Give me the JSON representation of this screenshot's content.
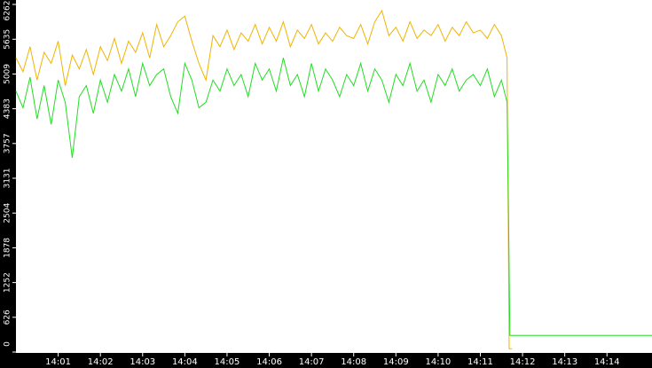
{
  "chart_data": {
    "type": "line",
    "xlim": [
      "14:00:00",
      "14:15:04"
    ],
    "xticks": [
      "14:01",
      "14:02",
      "14:03",
      "14:04",
      "14:05",
      "14:06",
      "14:07",
      "14:08",
      "14:09",
      "14:10",
      "14:11",
      "14:12",
      "14:13",
      "14:14"
    ],
    "ylim": [
      0,
      6262
    ],
    "yticks": [
      0,
      626,
      1252,
      1878,
      2504,
      3131,
      3757,
      4383,
      5009,
      5635,
      6262
    ],
    "series": [
      {
        "color": "#f0b400",
        "x": [
          "14:00:00",
          "14:00:10",
          "14:00:20",
          "14:00:30",
          "14:00:40",
          "14:00:50",
          "14:01:00",
          "14:01:10",
          "14:01:20",
          "14:01:30",
          "14:01:40",
          "14:01:50",
          "14:02:00",
          "14:02:10",
          "14:02:20",
          "14:02:30",
          "14:02:40",
          "14:02:50",
          "14:03:00",
          "14:03:10",
          "14:03:20",
          "14:03:30",
          "14:03:40",
          "14:03:50",
          "14:04:00",
          "14:04:10",
          "14:04:20",
          "14:04:30",
          "14:04:40",
          "14:04:50",
          "14:05:00",
          "14:05:10",
          "14:05:20",
          "14:05:30",
          "14:05:40",
          "14:05:50",
          "14:06:00",
          "14:06:10",
          "14:06:20",
          "14:06:30",
          "14:06:40",
          "14:06:50",
          "14:07:00",
          "14:07:10",
          "14:07:20",
          "14:07:30",
          "14:07:40",
          "14:07:50",
          "14:08:00",
          "14:08:10",
          "14:08:20",
          "14:08:30",
          "14:08:40",
          "14:08:50",
          "14:09:00",
          "14:09:10",
          "14:09:20",
          "14:09:30",
          "14:09:40",
          "14:09:50",
          "14:10:00",
          "14:10:10",
          "14:10:20",
          "14:10:30",
          "14:10:40",
          "14:10:50",
          "14:11:00",
          "14:11:10",
          "14:11:20",
          "14:11:30",
          "14:11:38",
          "14:11:41",
          "14:11:45"
        ],
        "values": [
          5300,
          5050,
          5500,
          4900,
          5400,
          5200,
          5600,
          4800,
          5350,
          5100,
          5450,
          5000,
          5500,
          5250,
          5650,
          5200,
          5600,
          5400,
          5750,
          5300,
          5900,
          5500,
          5700,
          5950,
          6050,
          5600,
          5200,
          4900,
          5700,
          5500,
          5800,
          5450,
          5750,
          5600,
          5900,
          5550,
          5850,
          5600,
          5950,
          5500,
          5800,
          5650,
          5900,
          5550,
          5750,
          5600,
          5850,
          5700,
          5650,
          5900,
          5550,
          5950,
          6150,
          5700,
          5850,
          5600,
          5950,
          5650,
          5800,
          5700,
          5900,
          5600,
          5850,
          5700,
          5950,
          5750,
          5800,
          5650,
          5900,
          5700,
          5300,
          60,
          60
        ]
      },
      {
        "color": "#22dd22",
        "x": [
          "14:00:00",
          "14:00:10",
          "14:00:20",
          "14:00:30",
          "14:00:40",
          "14:00:50",
          "14:01:00",
          "14:01:10",
          "14:01:20",
          "14:01:30",
          "14:01:40",
          "14:01:50",
          "14:02:00",
          "14:02:10",
          "14:02:20",
          "14:02:30",
          "14:02:40",
          "14:02:50",
          "14:03:00",
          "14:03:10",
          "14:03:20",
          "14:03:30",
          "14:03:40",
          "14:03:50",
          "14:04:00",
          "14:04:10",
          "14:04:20",
          "14:04:30",
          "14:04:40",
          "14:04:50",
          "14:05:00",
          "14:05:10",
          "14:05:20",
          "14:05:30",
          "14:05:40",
          "14:05:50",
          "14:06:00",
          "14:06:10",
          "14:06:20",
          "14:06:30",
          "14:06:40",
          "14:06:50",
          "14:07:00",
          "14:07:10",
          "14:07:20",
          "14:07:30",
          "14:07:40",
          "14:07:50",
          "14:08:00",
          "14:08:10",
          "14:08:20",
          "14:08:30",
          "14:08:40",
          "14:08:50",
          "14:09:00",
          "14:09:10",
          "14:09:20",
          "14:09:30",
          "14:09:40",
          "14:09:50",
          "14:10:00",
          "14:10:10",
          "14:10:20",
          "14:10:30",
          "14:10:40",
          "14:10:50",
          "14:11:00",
          "14:11:10",
          "14:11:20",
          "14:11:30",
          "14:11:38",
          "14:11:40",
          "14:11:42",
          "14:15:04"
        ],
        "values": [
          4700,
          4400,
          4950,
          4200,
          4800,
          4100,
          4900,
          4500,
          3500,
          4600,
          4800,
          4300,
          4900,
          4500,
          5000,
          4700,
          5100,
          4600,
          5200,
          4800,
          5000,
          5100,
          4600,
          4300,
          5200,
          4900,
          4400,
          4500,
          4900,
          4700,
          5100,
          4800,
          5000,
          4600,
          5200,
          4900,
          5100,
          4700,
          5300,
          4800,
          5000,
          4600,
          5200,
          4700,
          5100,
          4900,
          4600,
          5000,
          4800,
          5200,
          4700,
          5100,
          4900,
          4500,
          5000,
          4800,
          5200,
          4700,
          4900,
          4500,
          5000,
          4800,
          5100,
          4700,
          4900,
          5000,
          4800,
          5100,
          4600,
          4900,
          4500,
          2600,
          300,
          300
        ]
      }
    ]
  }
}
